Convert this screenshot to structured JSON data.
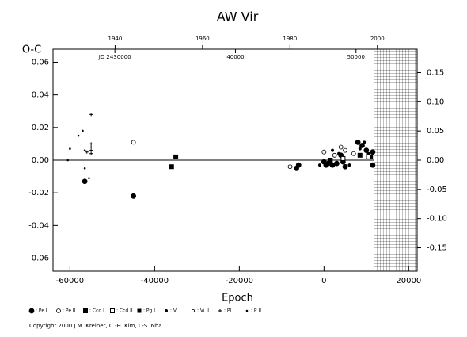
{
  "chart_data": {
    "type": "scatter",
    "title": "AW Vir",
    "y_label": "O-C",
    "x_label": "Epoch",
    "copyright": "Copyright 2000 J.M. Kreiner, C.-H. Kim, I.-S. Nha",
    "xlim": [
      -64000,
      22000
    ],
    "xticks": [
      -60000,
      -40000,
      -20000,
      0,
      20000
    ],
    "ylim": [
      -0.068,
      0.068
    ],
    "yticks": [
      -0.06,
      -0.04,
      -0.02,
      {
        "value": 0,
        "label": "0.00"
      },
      0.02,
      0.04,
      0.06
    ],
    "y2lim": [
      -0.19,
      0.19
    ],
    "y2ticks": [
      -0.15,
      {
        "value": -0.1,
        "label": "-0.10"
      },
      -0.05,
      {
        "value": 0,
        "label": "0.00"
      },
      0.05,
      {
        "value": 0.1,
        "label": "0.10"
      },
      0.15
    ],
    "year_lim": [
      1925.8,
      2009.1
    ],
    "year_ticks": [
      1940,
      1960,
      1980,
      2000
    ],
    "jd_lim": [
      2424870,
      2455070
    ],
    "jd_ticks": [
      {
        "value": 2430000,
        "label": "JD 2430000"
      },
      {
        "value": 2440000,
        "label": "40000"
      },
      {
        "value": 2450000,
        "label": "50000"
      }
    ],
    "zero_line": true,
    "series": [
      {
        "name": ": Pe I",
        "color": "#000000",
        "marker": "circle",
        "filled": true,
        "size": 3,
        "x": [
          -56500,
          -45000,
          -6500,
          -6000,
          0,
          500,
          1000,
          2000,
          3000,
          4000,
          4500,
          5000,
          8000,
          9000,
          10000,
          11500,
          11500
        ],
        "values": [
          -0.013,
          -0.022,
          -0.005,
          -0.003,
          -0.001,
          -0.003,
          -0.002,
          -0.003,
          -0.002,
          0.003,
          -0.001,
          -0.004,
          0.011,
          0.009,
          0.006,
          0.005,
          -0.003
        ]
      },
      {
        "name": ": Pe II",
        "color": "#000000",
        "marker": "circle",
        "filled": false,
        "size": 2.5,
        "x": [
          -45000,
          -8000,
          0,
          2500,
          4000,
          5000,
          7000
        ],
        "values": [
          0.011,
          -0.004,
          0.005,
          0.003,
          0.008,
          0.006,
          0.004
        ]
      },
      {
        "name": ": Ccd I",
        "color": "#000000",
        "marker": "square",
        "filled": true,
        "size": 2.5,
        "x": [
          -35000,
          -36000,
          1500,
          8500,
          11000
        ],
        "values": [
          0.002,
          -0.004,
          0.0,
          0.003,
          0.002
        ]
      },
      {
        "name": ": Ccd II",
        "color": "#000000",
        "marker": "square",
        "filled": false,
        "size": 2.5,
        "x": [
          4500,
          10500
        ],
        "values": [
          0.001,
          0.002
        ]
      },
      {
        "name": ": Pg I",
        "color": "#000000",
        "marker": "square",
        "filled": true,
        "size": 2,
        "x": [],
        "values": []
      },
      {
        "name": ": Vi I",
        "color": "#000000",
        "marker": "circle",
        "filled": true,
        "size": 1.6,
        "x": [
          2000,
          3500,
          8500,
          9500,
          10500,
          -1000,
          6000
        ],
        "values": [
          0.006,
          0.004,
          0.007,
          0.011,
          0.004,
          -0.003,
          -0.003
        ]
      },
      {
        "name": ": Vi II",
        "color": "#000000",
        "marker": "circle",
        "filled": false,
        "size": 1.6,
        "x": [],
        "values": []
      },
      {
        "name": ": Pl",
        "color": "#000000",
        "marker": "plus",
        "filled": true,
        "size": 2,
        "x": [
          -55000,
          -55000,
          -55000,
          -55000,
          -55000,
          -56000
        ],
        "values": [
          0.028,
          0.01,
          0.008,
          0.006,
          0.004,
          0.005
        ]
      },
      {
        "name": ": P II",
        "color": "#000000",
        "marker": "dot",
        "filled": true,
        "size": 0.9,
        "x": [
          -60500,
          -60000,
          -58000,
          -57000,
          -56500,
          -56500,
          -55500
        ],
        "values": [
          0.0,
          0.007,
          0.015,
          0.018,
          0.006,
          -0.005,
          -0.011
        ]
      }
    ]
  }
}
